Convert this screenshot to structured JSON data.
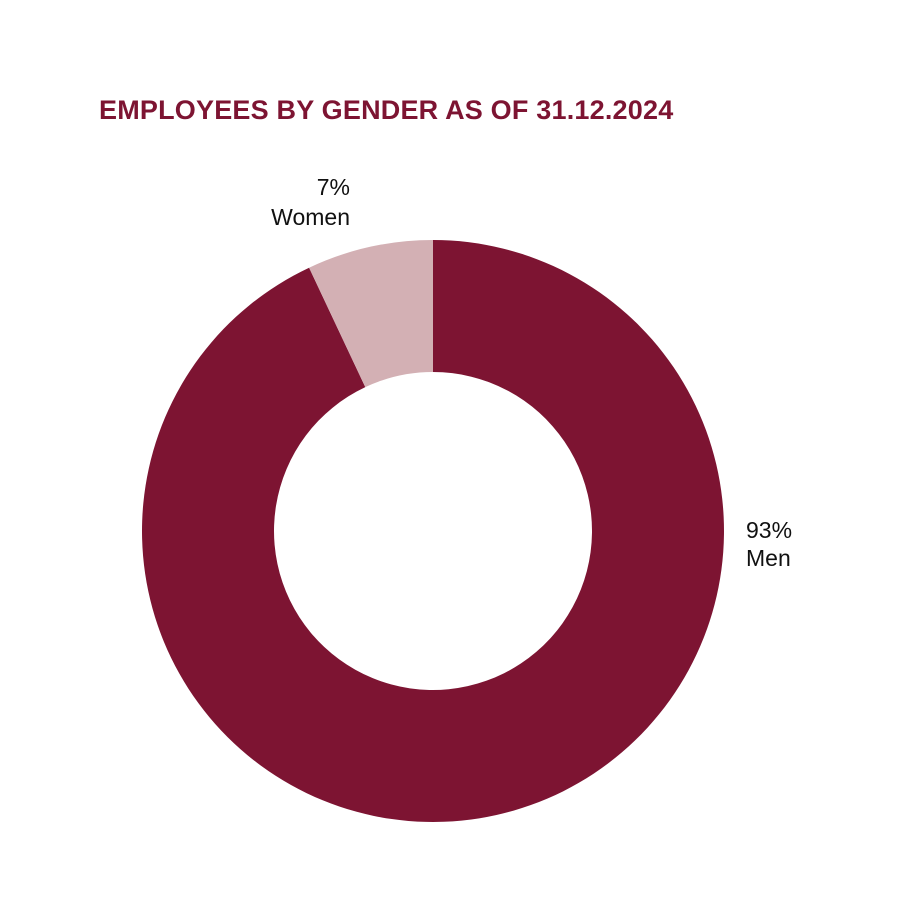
{
  "chart_data": {
    "type": "pie",
    "variant": "donut",
    "title": "EMPLOYEES BY GENDER AS OF 31.12.2024",
    "slices": [
      {
        "label": "Men",
        "value": 93,
        "value_label": "93%",
        "color": "#7d1432"
      },
      {
        "label": "Women",
        "value": 7,
        "value_label": "7%",
        "color": "#d3b0b4"
      }
    ],
    "start": "top",
    "direction": "clockwise",
    "legend": "none"
  },
  "colors": {
    "title": "#7d1432",
    "label_text": "#111111",
    "background": "#ffffff"
  }
}
